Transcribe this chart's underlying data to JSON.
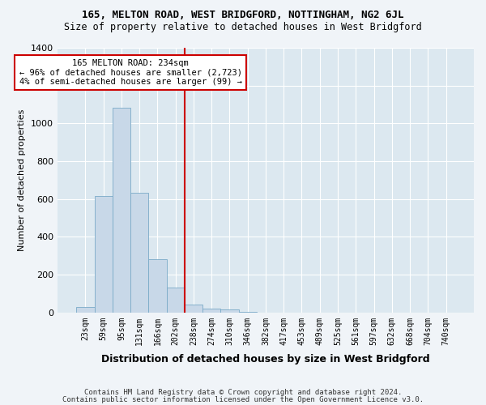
{
  "title1": "165, MELTON ROAD, WEST BRIDGFORD, NOTTINGHAM, NG2 6JL",
  "title2": "Size of property relative to detached houses in West Bridgford",
  "xlabel": "Distribution of detached houses by size in West Bridgford",
  "ylabel": "Number of detached properties",
  "footer1": "Contains HM Land Registry data © Crown copyright and database right 2024.",
  "footer2": "Contains public sector information licensed under the Open Government Licence v3.0.",
  "bin_labels": [
    "23sqm",
    "59sqm",
    "95sqm",
    "131sqm",
    "166sqm",
    "202sqm",
    "238sqm",
    "274sqm",
    "310sqm",
    "346sqm",
    "382sqm",
    "417sqm",
    "453sqm",
    "489sqm",
    "525sqm",
    "561sqm",
    "597sqm",
    "632sqm",
    "668sqm",
    "704sqm",
    "740sqm"
  ],
  "bar_values": [
    30,
    615,
    1085,
    635,
    280,
    130,
    40,
    20,
    15,
    5,
    0,
    0,
    0,
    0,
    0,
    0,
    0,
    0,
    0,
    0,
    0
  ],
  "bar_color": "#c8d8e8",
  "bar_edge_color": "#7aaac8",
  "vline_x": 5.5,
  "vline_color": "#cc0000",
  "ylim": [
    0,
    1400
  ],
  "yticks": [
    0,
    200,
    400,
    600,
    800,
    1000,
    1200,
    1400
  ],
  "annotation_text": "165 MELTON ROAD: 234sqm\n← 96% of detached houses are smaller (2,723)\n4% of semi-detached houses are larger (99) →",
  "annotation_box_color": "#ffffff",
  "annotation_box_edgecolor": "#cc0000",
  "fig_bg_color": "#f0f4f8",
  "plot_bg_color": "#dce8f0"
}
